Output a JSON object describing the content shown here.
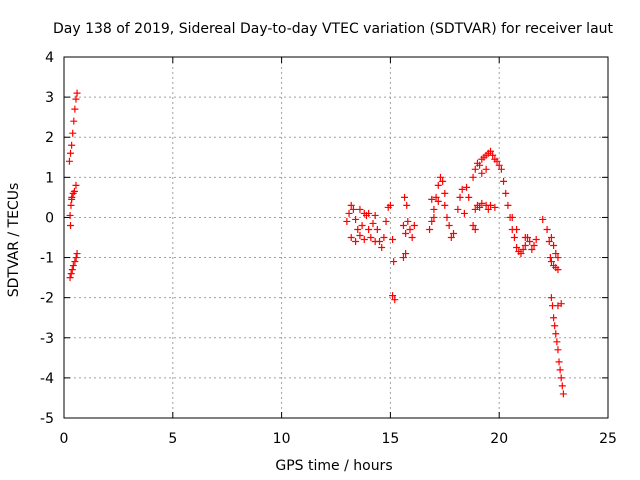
{
  "chart_data": {
    "type": "scatter",
    "title": "Day 138 of 2019, Sidereal Day-to-day VTEC variation (SDTVAR) for receiver laut",
    "xlabel": "GPS time / hours",
    "ylabel": "SDTVAR / TECUs",
    "xlim": [
      0,
      25
    ],
    "ylim": [
      -5,
      4
    ],
    "xticks": [
      0,
      5,
      10,
      15,
      20,
      25
    ],
    "yticks": [
      -5,
      -4,
      -3,
      -2,
      -1,
      0,
      1,
      2,
      3,
      4
    ],
    "xtick_labels": [
      "0",
      "5",
      "10",
      "15",
      "20",
      "25"
    ],
    "ytick_labels": [
      "-5",
      "-4",
      "-3",
      "-2",
      "-1",
      "0",
      "1",
      "2",
      "3",
      "4"
    ],
    "grid": true,
    "marker": "+",
    "marker_color": "#ff0000",
    "series": [
      {
        "name": "SDTVAR",
        "points": [
          [
            0.25,
            1.4
          ],
          [
            0.3,
            1.6
          ],
          [
            0.35,
            1.8
          ],
          [
            0.4,
            2.1
          ],
          [
            0.45,
            2.4
          ],
          [
            0.5,
            2.7
          ],
          [
            0.55,
            2.95
          ],
          [
            0.6,
            3.1
          ],
          [
            0.28,
            0.05
          ],
          [
            0.32,
            0.3
          ],
          [
            0.36,
            0.5
          ],
          [
            0.42,
            0.6
          ],
          [
            0.48,
            0.65
          ],
          [
            0.55,
            0.8
          ],
          [
            0.3,
            -0.2
          ],
          [
            0.35,
            0.45
          ],
          [
            0.28,
            -1.5
          ],
          [
            0.33,
            -1.4
          ],
          [
            0.38,
            -1.3
          ],
          [
            0.43,
            -1.2
          ],
          [
            0.5,
            -1.1
          ],
          [
            0.56,
            -1.0
          ],
          [
            0.6,
            -0.9
          ],
          [
            13.0,
            -0.1
          ],
          [
            13.1,
            0.1
          ],
          [
            13.2,
            0.3
          ],
          [
            13.3,
            0.2
          ],
          [
            13.4,
            -0.05
          ],
          [
            13.5,
            -0.3
          ],
          [
            13.6,
            -0.45
          ],
          [
            13.7,
            -0.2
          ],
          [
            13.8,
            0.1
          ],
          [
            13.9,
            0.05
          ],
          [
            14.0,
            -0.3
          ],
          [
            14.1,
            -0.5
          ],
          [
            14.2,
            -0.15
          ],
          [
            14.3,
            0.05
          ],
          [
            14.4,
            -0.3
          ],
          [
            14.5,
            -0.6
          ],
          [
            14.6,
            -0.75
          ],
          [
            14.7,
            -0.5
          ],
          [
            14.8,
            -0.1
          ],
          [
            14.9,
            0.25
          ],
          [
            15.0,
            0.3
          ],
          [
            15.1,
            -0.55
          ],
          [
            15.15,
            -1.1
          ],
          [
            13.2,
            -0.5
          ],
          [
            13.4,
            -0.6
          ],
          [
            13.6,
            0.2
          ],
          [
            13.8,
            -0.55
          ],
          [
            14.0,
            0.1
          ],
          [
            14.3,
            -0.6
          ],
          [
            15.1,
            -1.95
          ],
          [
            15.2,
            -2.05
          ],
          [
            15.6,
            -0.2
          ],
          [
            15.7,
            -0.4
          ],
          [
            15.8,
            -0.1
          ],
          [
            15.9,
            -0.3
          ],
          [
            16.0,
            -0.5
          ],
          [
            16.1,
            -0.2
          ],
          [
            15.65,
            0.5
          ],
          [
            15.75,
            0.3
          ],
          [
            15.6,
            -1.0
          ],
          [
            15.7,
            -0.9
          ],
          [
            16.8,
            -0.3
          ],
          [
            16.9,
            -0.1
          ],
          [
            17.0,
            0.2
          ],
          [
            17.1,
            0.5
          ],
          [
            17.2,
            0.8
          ],
          [
            17.3,
            1.0
          ],
          [
            17.4,
            0.9
          ],
          [
            17.5,
            0.6
          ],
          [
            16.9,
            0.45
          ],
          [
            17.0,
            0.0
          ],
          [
            17.2,
            0.4
          ],
          [
            17.5,
            0.3
          ],
          [
            17.6,
            0.0
          ],
          [
            17.7,
            -0.2
          ],
          [
            17.8,
            -0.5
          ],
          [
            17.9,
            -0.4
          ],
          [
            18.1,
            0.2
          ],
          [
            18.2,
            0.5
          ],
          [
            18.3,
            0.7
          ],
          [
            18.5,
            0.75
          ],
          [
            18.6,
            0.5
          ],
          [
            18.8,
            -0.2
          ],
          [
            18.9,
            -0.3
          ],
          [
            18.4,
            0.1
          ],
          [
            18.8,
            1.0
          ],
          [
            18.9,
            1.2
          ],
          [
            19.0,
            1.35
          ],
          [
            19.1,
            1.3
          ],
          [
            19.2,
            1.45
          ],
          [
            19.3,
            1.5
          ],
          [
            19.4,
            1.55
          ],
          [
            19.5,
            1.6
          ],
          [
            19.6,
            1.65
          ],
          [
            19.7,
            1.55
          ],
          [
            19.8,
            1.45
          ],
          [
            19.9,
            1.4
          ],
          [
            20.0,
            1.3
          ],
          [
            20.1,
            1.2
          ],
          [
            19.2,
            1.1
          ],
          [
            19.4,
            1.2
          ],
          [
            19.0,
            0.3
          ],
          [
            19.1,
            0.25
          ],
          [
            19.2,
            0.35
          ],
          [
            19.4,
            0.3
          ],
          [
            19.6,
            0.3
          ],
          [
            19.8,
            0.25
          ],
          [
            18.9,
            0.2
          ],
          [
            19.5,
            0.2
          ],
          [
            20.2,
            0.9
          ],
          [
            20.3,
            0.6
          ],
          [
            20.4,
            0.3
          ],
          [
            20.5,
            0.0
          ],
          [
            20.6,
            -0.3
          ],
          [
            20.7,
            -0.5
          ],
          [
            20.8,
            -0.75
          ],
          [
            20.9,
            -0.85
          ],
          [
            21.0,
            -0.9
          ],
          [
            21.1,
            -0.8
          ],
          [
            21.2,
            -0.7
          ],
          [
            21.3,
            -0.5
          ],
          [
            21.4,
            -0.6
          ],
          [
            21.5,
            -0.8
          ],
          [
            21.6,
            -0.7
          ],
          [
            21.7,
            -0.55
          ],
          [
            20.6,
            0.0
          ],
          [
            20.8,
            -0.3
          ],
          [
            21.2,
            -0.5
          ],
          [
            22.0,
            -0.05
          ],
          [
            22.2,
            -0.3
          ],
          [
            22.3,
            -0.6
          ],
          [
            22.35,
            -1.0
          ],
          [
            22.4,
            -1.1
          ],
          [
            22.5,
            -1.2
          ],
          [
            22.6,
            -1.25
          ],
          [
            22.7,
            -1.3
          ],
          [
            22.4,
            -0.5
          ],
          [
            22.5,
            -0.7
          ],
          [
            22.6,
            -0.9
          ],
          [
            22.7,
            -1.0
          ],
          [
            22.4,
            -2.0
          ],
          [
            22.45,
            -2.2
          ],
          [
            22.5,
            -2.5
          ],
          [
            22.55,
            -2.7
          ],
          [
            22.6,
            -2.9
          ],
          [
            22.65,
            -3.1
          ],
          [
            22.7,
            -3.3
          ],
          [
            22.75,
            -3.6
          ],
          [
            22.8,
            -3.8
          ],
          [
            22.85,
            -4.0
          ],
          [
            22.9,
            -4.2
          ],
          [
            22.95,
            -4.4
          ],
          [
            22.7,
            -2.2
          ],
          [
            22.85,
            -2.15
          ]
        ]
      }
    ]
  }
}
